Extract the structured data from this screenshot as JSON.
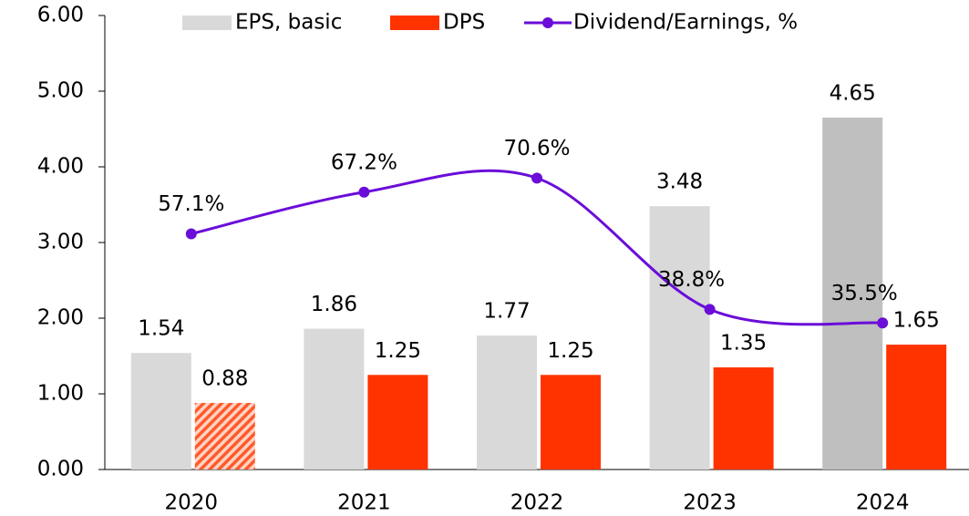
{
  "chart_data": {
    "type": "bar_line",
    "categories": [
      "2020",
      "2021",
      "2022",
      "2023",
      "2024"
    ],
    "series": [
      {
        "name": "EPS, basic",
        "type": "bar",
        "color": "#d9d9d9",
        "colors": [
          "#d9d9d9",
          "#d9d9d9",
          "#d9d9d9",
          "#d9d9d9",
          "#bfbfbf"
        ],
        "values": [
          1.54,
          1.86,
          1.77,
          3.48,
          4.65
        ]
      },
      {
        "name": "DPS",
        "type": "bar",
        "color": "#ff3300",
        "hatch": [
          true,
          false,
          false,
          false,
          false
        ],
        "values": [
          0.88,
          1.25,
          1.25,
          1.35,
          1.65
        ]
      },
      {
        "name": "Dividend/Earnings, %",
        "type": "line",
        "axis": "y2",
        "color": "#6a0dd9",
        "values": [
          57.1,
          67.2,
          70.6,
          38.8,
          35.5
        ],
        "value_labels": [
          "57.1%",
          "67.2%",
          "70.6%",
          "38.8%",
          "35.5%"
        ]
      }
    ],
    "ylim": [
      0,
      6
    ],
    "yticks": [
      {
        "value": 0,
        "label": "0.00"
      },
      {
        "value": 1,
        "label": "1.00"
      },
      {
        "value": 2,
        "label": "2.00"
      },
      {
        "value": 3,
        "label": "3.00"
      },
      {
        "value": 4,
        "label": "4.00"
      },
      {
        "value": 5,
        "label": "5.00"
      },
      {
        "value": 6,
        "label": "6.00"
      }
    ],
    "y2lim": [
      0,
      110
    ],
    "legend": "top"
  }
}
